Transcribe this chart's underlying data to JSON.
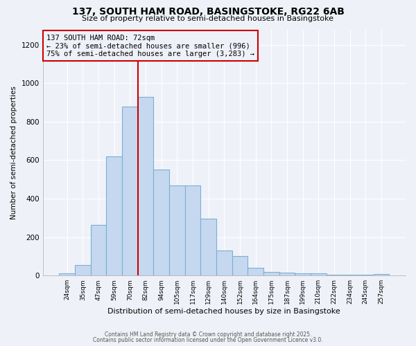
{
  "title1": "137, SOUTH HAM ROAD, BASINGSTOKE, RG22 6AB",
  "title2": "Size of property relative to semi-detached houses in Basingstoke",
  "xlabel": "Distribution of semi-detached houses by size in Basingstoke",
  "ylabel": "Number of semi-detached properties",
  "bar_color": "#c5d8f0",
  "bar_edge_color": "#7bafd4",
  "annotation_title": "137 SOUTH HAM ROAD: 72sqm",
  "annotation_line1": "← 23% of semi-detached houses are smaller (996)",
  "annotation_line2": "75% of semi-detached houses are larger (3,283) →",
  "annotation_box_color": "#cc0000",
  "vline_color": "#cc0000",
  "categories": [
    "24sqm",
    "35sqm",
    "47sqm",
    "59sqm",
    "70sqm",
    "82sqm",
    "94sqm",
    "105sqm",
    "117sqm",
    "129sqm",
    "140sqm",
    "152sqm",
    "164sqm",
    "175sqm",
    "187sqm",
    "199sqm",
    "210sqm",
    "222sqm",
    "234sqm",
    "245sqm",
    "257sqm"
  ],
  "values": [
    10,
    55,
    265,
    620,
    880,
    930,
    550,
    470,
    470,
    295,
    130,
    100,
    40,
    20,
    15,
    12,
    10,
    3,
    3,
    3,
    8
  ],
  "vline_index": 4.5,
  "ylim": [
    0,
    1280
  ],
  "yticks": [
    0,
    200,
    400,
    600,
    800,
    1000,
    1200
  ],
  "bg_color": "#eef2f8",
  "grid_color": "#ffffff",
  "footnote1": "Contains HM Land Registry data © Crown copyright and database right 2025.",
  "footnote2": "Contains public sector information licensed under the Open Government Licence v3.0."
}
